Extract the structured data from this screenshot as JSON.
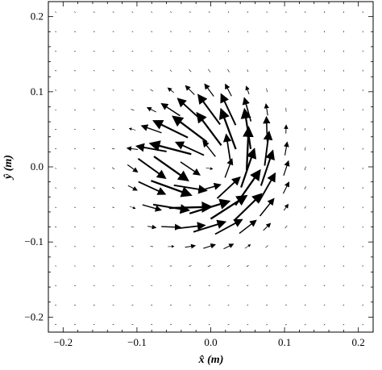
{
  "chart_data": {
    "type": "vector-field",
    "xlabel": "x̂ (m)",
    "ylabel": "ŷ (m)",
    "xlim": [
      -0.22,
      0.22
    ],
    "ylim": [
      -0.22,
      0.22
    ],
    "xticks": [
      -0.2,
      -0.1,
      0.0,
      0.1,
      0.2
    ],
    "yticks": [
      -0.2,
      -0.1,
      0.0,
      0.1,
      0.2
    ],
    "xtick_labels": [
      "−0.2",
      "−0.1",
      "0.0",
      "0.1",
      "0.2"
    ],
    "ytick_labels": [
      "−0.2",
      "−0.1",
      "0.0",
      "0.1",
      "0.2"
    ],
    "grid": false,
    "arrow_color": "#000000",
    "grid_spacing_m": 0.026,
    "field": {
      "description_units": "arrow length in data units (m-equivalent)",
      "vectors_sampled_on_grid": true
    }
  }
}
